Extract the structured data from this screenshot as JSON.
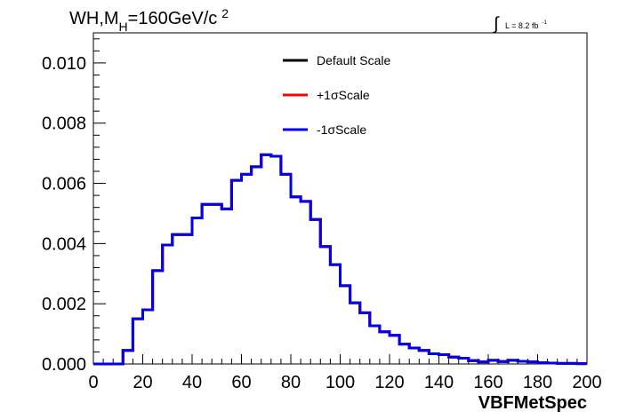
{
  "title": {
    "prefix": "WH,M",
    "sub": "H",
    "value": "=160GeV/c",
    "sup": "2"
  },
  "lumi": {
    "integral_symbol": "∫",
    "text": "L = 8.2 fb",
    "sup": "-1"
  },
  "chart_data": {
    "type": "line",
    "style": "step histogram",
    "xlabel": "VBFMetSpec",
    "ylabel": "",
    "xlim": [
      0,
      200
    ],
    "ylim": [
      0,
      0.011
    ],
    "x_ticks": [
      "0",
      "20",
      "40",
      "60",
      "80",
      "100",
      "120",
      "140",
      "160",
      "180",
      "200"
    ],
    "y_ticks": [
      "0.000",
      "0.002",
      "0.004",
      "0.006",
      "0.008",
      "0.010"
    ],
    "bin_width": 4,
    "bin_low_edges": [
      0,
      4,
      8,
      12,
      16,
      20,
      24,
      28,
      32,
      36,
      40,
      44,
      48,
      52,
      56,
      60,
      64,
      68,
      72,
      76,
      80,
      84,
      88,
      92,
      96,
      100,
      104,
      108,
      112,
      116,
      120,
      124,
      128,
      132,
      136,
      140,
      144,
      148,
      152,
      156,
      160,
      164,
      168,
      172,
      176,
      180,
      184,
      188,
      192,
      196
    ],
    "legend": {
      "position": "top-center"
    },
    "series": [
      {
        "name": "Default Scale",
        "color": "#000000",
        "values": [
          0.0,
          0.0,
          0.0,
          0.00045,
          0.0015,
          0.0018,
          0.0031,
          0.00395,
          0.0043,
          0.0043,
          0.00485,
          0.0053,
          0.0053,
          0.00515,
          0.0061,
          0.0063,
          0.00655,
          0.00695,
          0.0069,
          0.0063,
          0.00555,
          0.0054,
          0.0048,
          0.0039,
          0.0033,
          0.0026,
          0.00203,
          0.0017,
          0.00127,
          0.00107,
          0.00095,
          0.00066,
          0.00053,
          0.00045,
          0.00034,
          0.00031,
          0.00023,
          0.00019,
          0.00011,
          7e-05,
          0.00012,
          8e-05,
          0.00012,
          9e-05,
          7e-05,
          4e-05,
          3e-05,
          2e-05,
          2e-05,
          1e-05
        ]
      },
      {
        "name": "+1σScale",
        "color": "#ff0000",
        "values": [
          0.0,
          0.0,
          0.0,
          0.00045,
          0.0015,
          0.0018,
          0.0031,
          0.00395,
          0.0043,
          0.0043,
          0.00485,
          0.0053,
          0.0053,
          0.00515,
          0.0061,
          0.0063,
          0.00655,
          0.00695,
          0.0069,
          0.0063,
          0.00555,
          0.0054,
          0.0048,
          0.0039,
          0.0033,
          0.0026,
          0.00203,
          0.0017,
          0.00127,
          0.00107,
          0.00095,
          0.00066,
          0.00053,
          0.00045,
          0.00034,
          0.00031,
          0.00023,
          0.00019,
          0.00011,
          7e-05,
          0.00012,
          8e-05,
          0.00012,
          9e-05,
          7e-05,
          4e-05,
          3e-05,
          2e-05,
          2e-05,
          1e-05
        ]
      },
      {
        "name": "-1σScale",
        "color": "#0000ee",
        "values": [
          0.0,
          0.0,
          0.0,
          0.00045,
          0.0015,
          0.0018,
          0.0031,
          0.00395,
          0.0043,
          0.0043,
          0.00485,
          0.0053,
          0.0053,
          0.00515,
          0.0061,
          0.0063,
          0.00655,
          0.00695,
          0.0069,
          0.0063,
          0.00555,
          0.0054,
          0.0048,
          0.0039,
          0.0033,
          0.0026,
          0.00203,
          0.0017,
          0.00127,
          0.00107,
          0.00095,
          0.00066,
          0.00053,
          0.00045,
          0.00034,
          0.00031,
          0.00023,
          0.00019,
          0.00011,
          7e-05,
          0.00012,
          8e-05,
          0.00012,
          9e-05,
          7e-05,
          4e-05,
          3e-05,
          2e-05,
          2e-05,
          1e-05
        ]
      }
    ]
  }
}
